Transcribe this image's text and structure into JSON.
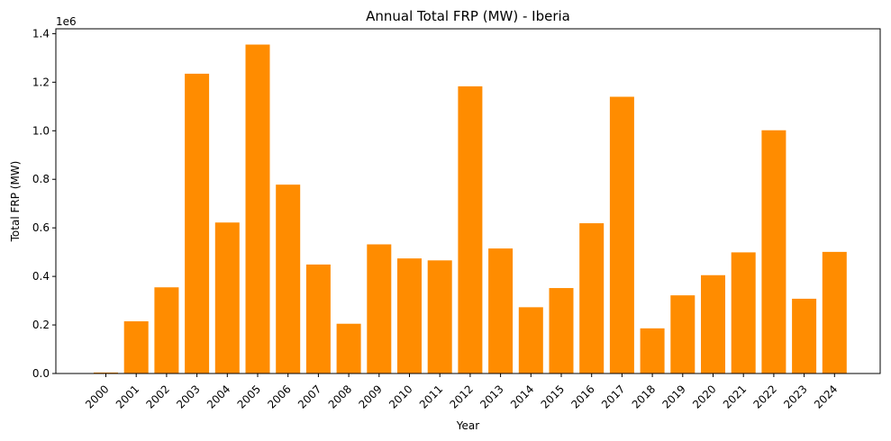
{
  "chart_data": {
    "type": "bar",
    "title": "Annual Total FRP (MW) - Iberia",
    "xlabel": "Year",
    "ylabel": "Total FRP (MW)",
    "y_multiplier_label": "1e6",
    "categories": [
      "2000",
      "2001",
      "2002",
      "2003",
      "2004",
      "2005",
      "2006",
      "2007",
      "2008",
      "2009",
      "2010",
      "2011",
      "2012",
      "2013",
      "2014",
      "2015",
      "2016",
      "2017",
      "2018",
      "2019",
      "2020",
      "2021",
      "2022",
      "2023",
      "2024"
    ],
    "values": [
      0.004,
      0.215,
      0.355,
      1.235,
      0.622,
      1.355,
      0.778,
      0.449,
      0.205,
      0.532,
      0.474,
      0.466,
      1.183,
      0.515,
      0.273,
      0.352,
      0.619,
      1.14,
      0.186,
      0.322,
      0.405,
      0.499,
      1.002,
      0.308,
      0.501
    ],
    "value_unit_scale": 1000000,
    "ylim": [
      0,
      1.42
    ],
    "yticks": [
      0.0,
      0.2,
      0.4,
      0.6,
      0.8,
      1.0,
      1.2,
      1.4
    ],
    "ytick_labels": [
      "0.0",
      "0.2",
      "0.4",
      "0.6",
      "0.8",
      "1.0",
      "1.2",
      "1.4"
    ],
    "bar_color": "#ff8c00",
    "grid": false,
    "legend": "none"
  }
}
